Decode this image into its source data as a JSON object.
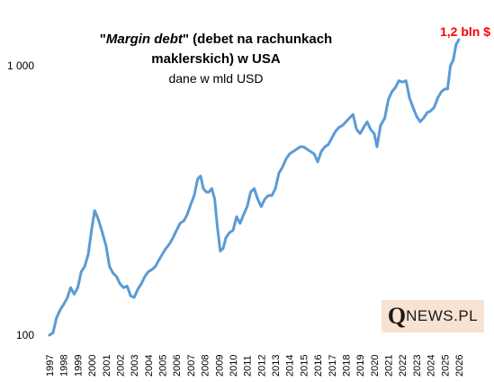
{
  "chart_data": {
    "type": "line",
    "title_line1_quote_open": "\"",
    "title_line1_italic": "Margin debt",
    "title_line1_rest": "\" (debet na rachunkach",
    "title_line2": "maklerskich) w USA",
    "subtitle": "dane w mld USD",
    "annotation": "1,2 bln $",
    "annotation_color": "#ff0000",
    "line_color": "#5b9bd5",
    "y_scale": "log",
    "ylim": [
      100,
      1250
    ],
    "yticks": [
      "100",
      "1 000"
    ],
    "xlim": [
      1997,
      2026
    ],
    "xticks": [
      "1997",
      "1998",
      "1999",
      "2000",
      "2001",
      "2002",
      "2003",
      "2004",
      "2005",
      "2006",
      "2007",
      "2008",
      "2009",
      "2010",
      "2011",
      "2012",
      "2013",
      "2014",
      "2015",
      "2016",
      "2017",
      "2018",
      "2019",
      "2020",
      "2021",
      "2022",
      "2023",
      "2024",
      "2025",
      "2026"
    ],
    "grid": false,
    "series": [
      {
        "x": [
          1997.0,
          1997.25,
          1997.5,
          1997.75,
          1998.0,
          1998.25,
          1998.5,
          1998.75,
          1999.0,
          1999.25,
          1999.5,
          1999.75,
          2000.0,
          2000.2,
          2000.45,
          2000.75,
          2001.0,
          2001.25,
          2001.5,
          2001.75,
          2002.0,
          2002.25,
          2002.5,
          2002.75,
          2003.0,
          2003.25,
          2003.5,
          2003.75,
          2004.0,
          2004.25,
          2004.5,
          2004.75,
          2005.0,
          2005.25,
          2005.5,
          2005.75,
          2006.0,
          2006.25,
          2006.5,
          2006.75,
          2007.0,
          2007.25,
          2007.5,
          2007.7,
          2007.9,
          2008.1,
          2008.3,
          2008.5,
          2008.7,
          2008.9,
          2009.1,
          2009.3,
          2009.5,
          2009.75,
          2010.0,
          2010.25,
          2010.5,
          2010.75,
          2011.0,
          2011.25,
          2011.5,
          2011.75,
          2012.0,
          2012.25,
          2012.5,
          2012.75,
          2013.0,
          2013.25,
          2013.5,
          2013.75,
          2014.0,
          2014.25,
          2014.5,
          2014.75,
          2015.0,
          2015.25,
          2015.5,
          2015.75,
          2016.0,
          2016.25,
          2016.5,
          2016.75,
          2017.0,
          2017.25,
          2017.5,
          2017.75,
          2018.0,
          2018.25,
          2018.5,
          2018.75,
          2019.0,
          2019.25,
          2019.5,
          2019.75,
          2020.0,
          2020.2,
          2020.45,
          2020.75,
          2021.0,
          2021.25,
          2021.5,
          2021.75,
          2022.0,
          2022.25,
          2022.5,
          2022.75,
          2023.0,
          2023.25,
          2023.5,
          2023.75,
          2024.0,
          2024.25,
          2024.5,
          2024.75,
          2025.0,
          2025.2,
          2025.4,
          2025.6,
          2025.8,
          2026.0
        ],
        "values": [
          100,
          102,
          116,
          124,
          130,
          137,
          150,
          142,
          150,
          172,
          180,
          200,
          250,
          290,
          270,
          240,
          215,
          180,
          170,
          165,
          155,
          150,
          152,
          140,
          138,
          148,
          155,
          165,
          172,
          175,
          180,
          190,
          200,
          210,
          218,
          230,
          245,
          260,
          265,
          280,
          305,
          330,
          380,
          390,
          350,
          340,
          340,
          350,
          320,
          250,
          205,
          210,
          230,
          240,
          245,
          275,
          260,
          280,
          300,
          340,
          350,
          320,
          300,
          320,
          330,
          330,
          350,
          400,
          420,
          450,
          470,
          480,
          490,
          500,
          500,
          490,
          480,
          470,
          440,
          480,
          500,
          510,
          540,
          570,
          590,
          600,
          620,
          640,
          660,
          580,
          560,
          590,
          620,
          580,
          560,
          500,
          600,
          640,
          750,
          800,
          830,
          880,
          870,
          880,
          760,
          700,
          650,
          620,
          640,
          670,
          680,
          700,
          760,
          800,
          820,
          820,
          1000,
          1050,
          1200,
          1250
        ]
      }
    ]
  }
}
